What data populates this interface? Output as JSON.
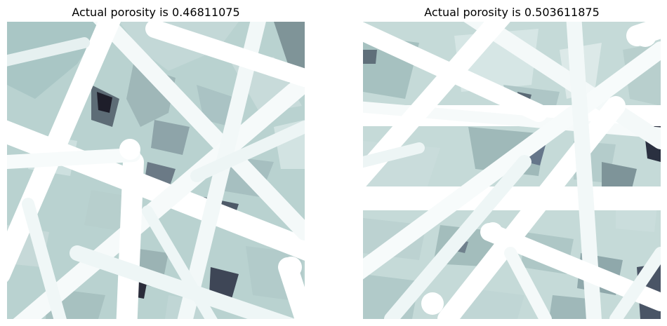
{
  "panels": [
    {
      "title": "Actual porosity is 0.46811075"
    },
    {
      "title": "Actual porosity is 0.503611875"
    }
  ],
  "palette": {
    "fiber": "#ffffff",
    "fiber_shade": "#eef6f6",
    "pore_light": "#d8e7e6",
    "pore_mid": "#b6cfcd",
    "pore_dark": "#8fa9ab",
    "pore_deepest": "#1c1c28"
  }
}
